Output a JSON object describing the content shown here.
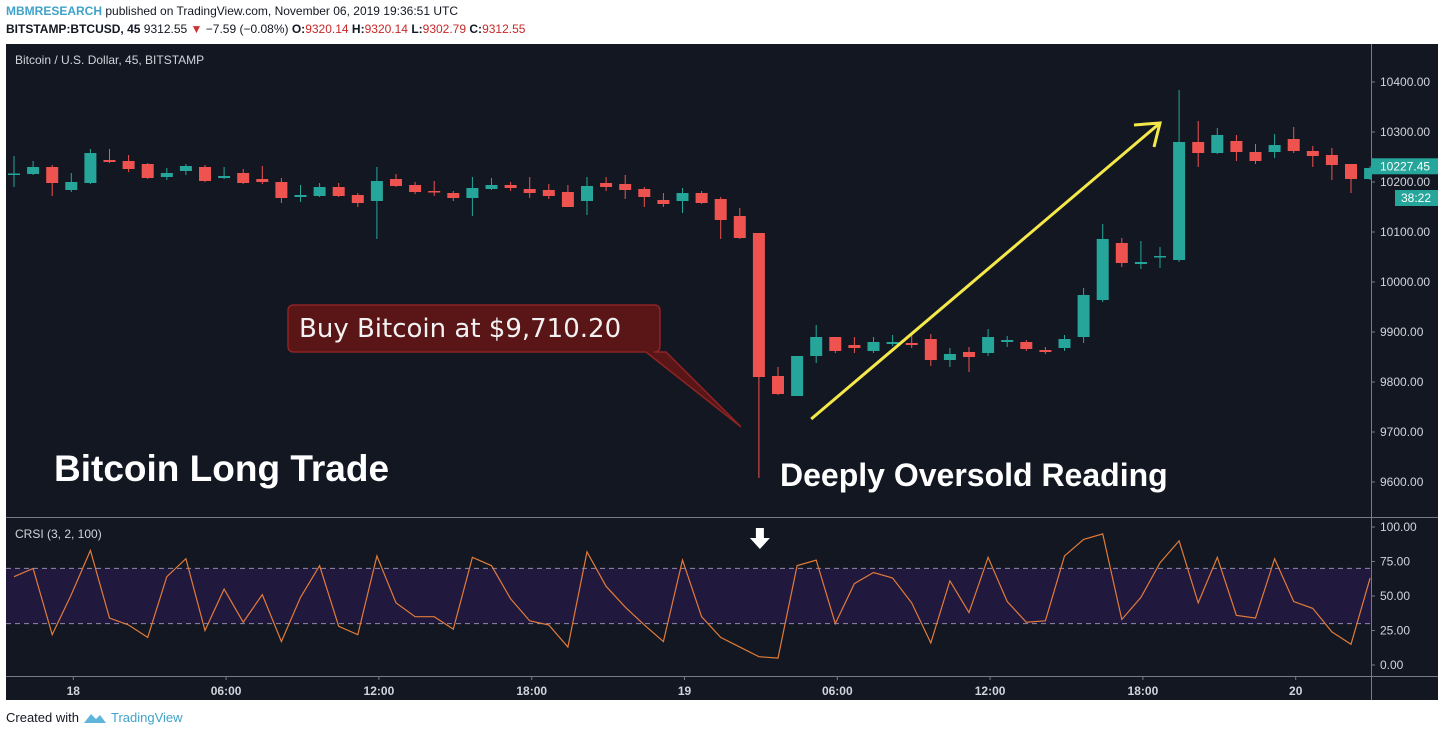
{
  "header": {
    "publisher": "MBMRESEARCH",
    "published_text": "published on TradingView.com, November 06, 2019 19:36:51 UTC",
    "symbol": "BITSTAMP:BTCUSD, 45",
    "last": "9312.55",
    "change": "−7.59 (−0.08%)",
    "o_label": "O:",
    "o": "9320.14",
    "h_label": "H:",
    "h": "9320.14",
    "l_label": "L:",
    "l": "9302.79",
    "c_label": "C:",
    "c": "9312.55"
  },
  "footer": {
    "created_with": "Created with",
    "brand": "TradingView"
  },
  "colors": {
    "up": "#26a69a",
    "down": "#ef5350",
    "background": "#131722",
    "crsi_line": "#e07b39",
    "band_fill": "#21183d",
    "arrow": "#f5e94a"
  },
  "chart_data": {
    "type": "candlestick",
    "title": "Bitcoin / U.S. Dollar, 45, BITSTAMP",
    "price_ticks": [
      "10400.00",
      "10300.00",
      "10200.00",
      "10100.00",
      "10000.00",
      "9900.00",
      "9800.00",
      "9700.00",
      "9600.00"
    ],
    "price_tick_values": [
      10400,
      10300,
      10200,
      10100,
      10000,
      9900,
      9800,
      9700,
      9600
    ],
    "ylim": [
      9525,
      10475
    ],
    "last_price_label": "10227.45",
    "countdown_label": "38:22",
    "time_ticks": [
      {
        "label": "18",
        "bar": 3
      },
      {
        "label": "06:00",
        "bar": 11
      },
      {
        "label": "12:00",
        "bar": 19
      },
      {
        "label": "18:00",
        "bar": 27
      },
      {
        "label": "19",
        "bar": 35
      },
      {
        "label": "06:00",
        "bar": 43
      },
      {
        "label": "12:00",
        "bar": 51
      },
      {
        "label": "18:00",
        "bar": 59
      },
      {
        "label": "20",
        "bar": 67
      }
    ],
    "ohlc": [
      [
        10216,
        10252,
        10190,
        10217
      ],
      [
        10216,
        10242,
        10214,
        10230
      ],
      [
        10230,
        10234,
        10172,
        10198
      ],
      [
        10184,
        10218,
        10180,
        10200
      ],
      [
        10198,
        10266,
        10196,
        10258
      ],
      [
        10244,
        10266,
        10238,
        10240
      ],
      [
        10242,
        10254,
        10220,
        10226
      ],
      [
        10236,
        10238,
        10206,
        10208
      ],
      [
        10210,
        10228,
        10204,
        10218
      ],
      [
        10222,
        10236,
        10214,
        10232
      ],
      [
        10230,
        10234,
        10200,
        10202
      ],
      [
        10208,
        10230,
        10206,
        10212
      ],
      [
        10218,
        10226,
        10196,
        10198
      ],
      [
        10206,
        10232,
        10196,
        10200
      ],
      [
        10200,
        10208,
        10158,
        10168
      ],
      [
        10170,
        10194,
        10160,
        10174
      ],
      [
        10172,
        10198,
        10170,
        10190
      ],
      [
        10190,
        10198,
        10170,
        10172
      ],
      [
        10174,
        10178,
        10150,
        10158
      ],
      [
        10162,
        10230,
        10086,
        10202
      ],
      [
        10206,
        10216,
        10190,
        10192
      ],
      [
        10194,
        10200,
        10176,
        10180
      ],
      [
        10182,
        10202,
        10172,
        10180
      ],
      [
        10178,
        10182,
        10162,
        10168
      ],
      [
        10168,
        10210,
        10132,
        10188
      ],
      [
        10186,
        10208,
        10184,
        10194
      ],
      [
        10194,
        10200,
        10182,
        10188
      ],
      [
        10186,
        10210,
        10168,
        10178
      ],
      [
        10184,
        10196,
        10166,
        10172
      ],
      [
        10180,
        10194,
        10150,
        10150
      ],
      [
        10162,
        10210,
        10134,
        10192
      ],
      [
        10198,
        10210,
        10182,
        10190
      ],
      [
        10196,
        10214,
        10166,
        10184
      ],
      [
        10186,
        10190,
        10150,
        10170
      ],
      [
        10164,
        10178,
        10150,
        10156
      ],
      [
        10162,
        10188,
        10138,
        10178
      ],
      [
        10178,
        10182,
        10156,
        10158
      ],
      [
        10166,
        10170,
        10086,
        10124
      ],
      [
        10132,
        10148,
        10086,
        10088
      ],
      [
        10098,
        10098,
        9608,
        9810
      ],
      [
        9812,
        9830,
        9774,
        9776
      ],
      [
        9772,
        9852,
        9772,
        9852
      ],
      [
        9852,
        9914,
        9838,
        9890
      ],
      [
        9890,
        9890,
        9858,
        9862
      ],
      [
        9874,
        9890,
        9858,
        9868
      ],
      [
        9862,
        9890,
        9858,
        9880
      ],
      [
        9876,
        9894,
        9872,
        9880
      ],
      [
        9878,
        9898,
        9868,
        9874
      ],
      [
        9886,
        9896,
        9832,
        9844
      ],
      [
        9844,
        9868,
        9830,
        9856
      ],
      [
        9860,
        9870,
        9820,
        9850
      ],
      [
        9858,
        9906,
        9852,
        9890
      ],
      [
        9880,
        9892,
        9870,
        9884
      ],
      [
        9880,
        9884,
        9862,
        9866
      ],
      [
        9864,
        9870,
        9856,
        9860
      ],
      [
        9868,
        9894,
        9862,
        9886
      ],
      [
        9890,
        9988,
        9878,
        9974
      ],
      [
        9964,
        10116,
        9960,
        10086
      ],
      [
        10078,
        10088,
        10030,
        10038
      ],
      [
        10036,
        10082,
        10026,
        10040
      ],
      [
        10050,
        10070,
        10028,
        10052
      ],
      [
        10044,
        10384,
        10040,
        10280
      ],
      [
        10280,
        10322,
        10230,
        10258
      ],
      [
        10258,
        10308,
        10256,
        10294
      ],
      [
        10282,
        10294,
        10242,
        10260
      ],
      [
        10260,
        10276,
        10236,
        10242
      ],
      [
        10260,
        10296,
        10248,
        10274
      ],
      [
        10286,
        10310,
        10258,
        10262
      ],
      [
        10262,
        10272,
        10230,
        10252
      ],
      [
        10254,
        10268,
        10204,
        10234
      ],
      [
        10236,
        10236,
        10178,
        10206
      ],
      [
        10206,
        10232,
        10204,
        10228
      ]
    ],
    "indicator": {
      "name": "CRSI (3, 2, 100)",
      "ylim": [
        0,
        100
      ],
      "ticks": [
        "100.00",
        "75.00",
        "50.00",
        "25.00",
        "0.00"
      ],
      "tick_values": [
        100,
        75,
        50,
        25,
        0
      ],
      "bands": [
        30,
        70
      ],
      "values": [
        64,
        70,
        22,
        51,
        83,
        34,
        29,
        20,
        64,
        77,
        25,
        55,
        31,
        51,
        17,
        49,
        72,
        28,
        22,
        79,
        45,
        35,
        35,
        26,
        78,
        72,
        48,
        32,
        29,
        13,
        82,
        57,
        42,
        29,
        17,
        76,
        35,
        20,
        13,
        6,
        5,
        72,
        76,
        30,
        59,
        67,
        63,
        45,
        16,
        61,
        38,
        78,
        46,
        31,
        32,
        79,
        91,
        95,
        33,
        49,
        74,
        90,
        45,
        78,
        36,
        34,
        77,
        46,
        41,
        24,
        15,
        63
      ]
    },
    "annotations": {
      "callout": "Buy Bitcoin at $9,710.20",
      "callout_target_price": 9710.2,
      "left_label": "Bitcoin Long Trade",
      "bottom_label": "Deeply Oversold Reading",
      "trend_arrow": {
        "from_bar": 42,
        "from_price": 9726,
        "to_bar": 60,
        "to_price": 10318
      },
      "indicator_arrow_bar": 39
    }
  }
}
